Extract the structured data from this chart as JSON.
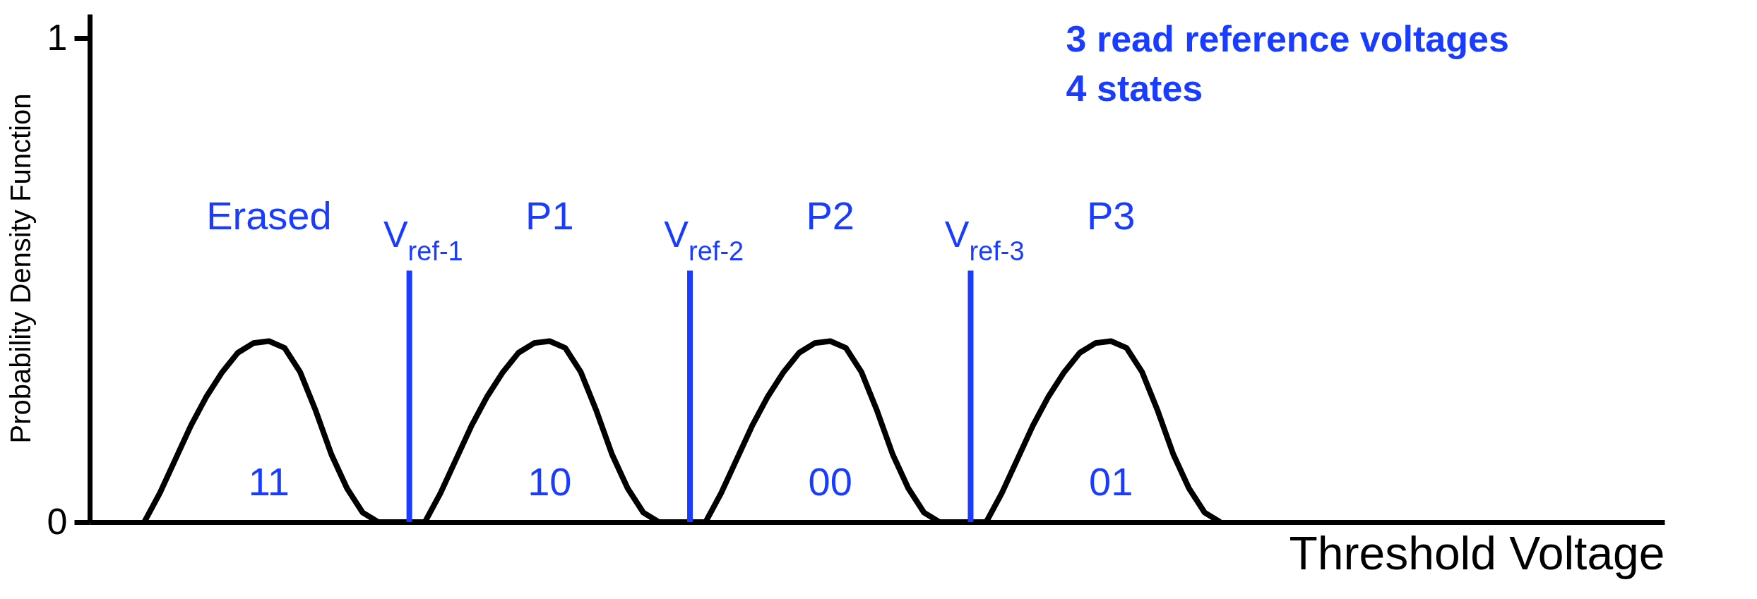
{
  "chart_data": {
    "type": "line",
    "xlabel": "Threshold Voltage",
    "ylabel": "Probability Density Function",
    "categories": [
      null,
      null,
      null,
      null,
      null,
      null,
      null,
      null,
      null,
      null,
      null,
      null,
      null,
      null,
      null,
      null,
      null,
      null,
      null,
      null,
      null,
      null,
      null,
      null,
      null,
      null,
      null,
      null,
      null,
      null,
      null,
      null,
      null,
      null,
      null,
      null,
      null,
      null,
      null,
      null,
      null,
      null,
      null,
      null,
      null,
      null,
      null,
      null,
      null,
      null,
      null,
      null,
      null,
      null,
      null,
      null,
      null,
      null,
      null,
      null,
      null,
      null,
      null,
      null,
      null,
      null,
      null,
      null,
      null,
      null,
      null,
      null,
      null,
      null,
      null,
      null,
      null,
      null,
      null,
      null,
      null,
      null,
      null,
      null,
      null,
      null,
      null,
      null,
      null,
      null,
      null,
      null,
      null,
      null,
      null,
      null,
      null,
      null,
      null,
      null,
      null
    ],
    "ylim": [
      0,
      1.05
    ],
    "yticks": [
      0,
      1
    ],
    "tick_labels": "y",
    "grid": false,
    "line_style": "solid",
    "series": [
      {
        "color": "#000000",
        "values": [
          null,
          null,
          null,
          0,
          0.06,
          0.13,
          0.2,
          0.26,
          0.31,
          0.35,
          0.37,
          0.374,
          0.36,
          0.31,
          0.23,
          0.14,
          0.07,
          0.02,
          0,
          0,
          0,
          0,
          0.06,
          0.13,
          0.2,
          0.26,
          0.31,
          0.35,
          0.37,
          0.374,
          0.36,
          0.31,
          0.23,
          0.14,
          0.07,
          0.02,
          0,
          0,
          0,
          0,
          0.06,
          0.13,
          0.2,
          0.26,
          0.31,
          0.35,
          0.37,
          0.374,
          0.36,
          0.31,
          0.23,
          0.14,
          0.07,
          0.02,
          0,
          0,
          0,
          0,
          0.06,
          0.13,
          0.2,
          0.26,
          0.31,
          0.35,
          0.37,
          0.374,
          0.36,
          0.31,
          0.23,
          0.14,
          0.07,
          0.02,
          0,
          null,
          null,
          null,
          null,
          null,
          null,
          null,
          null,
          null,
          null,
          null,
          null,
          null,
          null,
          null,
          null,
          null,
          null,
          null,
          null,
          null,
          null,
          null,
          null,
          null,
          null,
          null,
          null
        ]
      },
      {
        "type": "bar",
        "name": "V$_{ref-1}$",
        "color": "#1a3cff",
        "values": [
          null,
          null,
          null,
          null,
          null,
          null,
          null,
          null,
          null,
          null,
          null,
          null,
          null,
          null,
          null,
          null,
          null,
          null,
          null,
          null,
          0.52,
          null,
          null,
          null,
          null,
          null,
          null,
          null,
          null,
          null,
          null,
          null,
          null,
          null,
          null,
          null,
          null,
          null,
          null,
          null,
          null,
          null,
          null,
          null,
          null,
          null,
          null,
          null,
          null,
          null,
          null,
          null,
          null,
          null,
          null,
          null,
          null,
          null,
          null,
          null,
          null,
          null,
          null,
          null,
          null,
          null,
          null,
          null,
          null,
          null,
          null,
          null,
          null,
          null,
          null,
          null,
          null,
          null,
          null,
          null,
          null,
          null,
          null,
          null,
          null,
          null,
          null,
          null,
          null,
          null,
          null,
          null,
          null,
          null,
          null,
          null,
          null,
          null,
          null,
          null,
          null
        ]
      },
      {
        "type": "bar",
        "name": "V$_{ref-2}$",
        "color": "#1a3cff",
        "values": [
          null,
          null,
          null,
          null,
          null,
          null,
          null,
          null,
          null,
          null,
          null,
          null,
          null,
          null,
          null,
          null,
          null,
          null,
          null,
          null,
          null,
          null,
          null,
          null,
          null,
          null,
          null,
          null,
          null,
          null,
          null,
          null,
          null,
          null,
          null,
          null,
          null,
          null,
          0.52,
          null,
          null,
          null,
          null,
          null,
          null,
          null,
          null,
          null,
          null,
          null,
          null,
          null,
          null,
          null,
          null,
          null,
          null,
          null,
          null,
          null,
          null,
          null,
          null,
          null,
          null,
          null,
          null,
          null,
          null,
          null,
          null,
          null,
          null,
          null,
          null,
          null,
          null,
          null,
          null,
          null,
          null,
          null,
          null,
          null,
          null,
          null,
          null,
          null,
          null,
          null,
          null,
          null,
          null,
          null,
          null,
          null,
          null,
          null,
          null,
          null,
          null
        ]
      },
      {
        "type": "bar",
        "name": "V$_{ref-3}$",
        "color": "#1a3cff",
        "values": [
          null,
          null,
          null,
          null,
          null,
          null,
          null,
          null,
          null,
          null,
          null,
          null,
          null,
          null,
          null,
          null,
          null,
          null,
          null,
          null,
          null,
          null,
          null,
          null,
          null,
          null,
          null,
          null,
          null,
          null,
          null,
          null,
          null,
          null,
          null,
          null,
          null,
          null,
          null,
          null,
          null,
          null,
          null,
          null,
          null,
          null,
          null,
          null,
          null,
          null,
          null,
          null,
          null,
          null,
          null,
          null,
          0.52,
          null,
          null,
          null,
          null,
          null,
          null,
          null,
          null,
          null,
          null,
          null,
          null,
          null,
          null,
          null,
          null,
          null,
          null,
          null,
          null,
          null,
          null,
          null,
          null,
          null,
          null,
          null,
          null,
          null,
          null,
          null,
          null,
          null,
          null,
          null,
          null,
          null,
          null,
          null,
          null,
          null,
          null,
          null,
          null
        ]
      }
    ],
    "annotations": [
      "Erased",
      "P1",
      "P2",
      "P3",
      "11",
      "10",
      "00",
      "01",
      "3 read reference voltages",
      "4 states"
    ]
  }
}
